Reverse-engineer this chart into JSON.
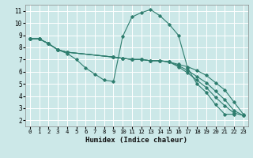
{
  "xlabel": "Humidex (Indice chaleur)",
  "bg_color": "#cce8e8",
  "grid_color": "#ffffff",
  "line_color": "#2e7d6e",
  "xlim": [
    -0.5,
    23.5
  ],
  "ylim": [
    1.5,
    11.5
  ],
  "xticks": [
    0,
    1,
    2,
    3,
    4,
    5,
    6,
    7,
    8,
    9,
    10,
    11,
    12,
    13,
    14,
    15,
    16,
    17,
    18,
    19,
    20,
    21,
    22,
    23
  ],
  "yticks": [
    2,
    3,
    4,
    5,
    6,
    7,
    8,
    9,
    10,
    11
  ],
  "lines": [
    {
      "x": [
        0,
        1,
        2,
        3,
        4,
        5,
        6,
        7,
        8,
        9,
        10,
        11,
        12,
        13,
        14,
        15,
        16,
        17,
        18,
        19,
        20,
        21,
        22
      ],
      "y": [
        8.7,
        8.7,
        8.3,
        7.8,
        7.5,
        7.0,
        6.3,
        5.8,
        5.3,
        5.2,
        8.9,
        10.5,
        10.85,
        11.1,
        10.6,
        9.9,
        9.0,
        6.3,
        5.0,
        4.3,
        3.3,
        2.5,
        2.5
      ]
    },
    {
      "x": [
        0,
        1,
        2,
        3,
        4,
        9,
        10,
        11,
        12,
        13,
        14,
        15,
        16,
        17,
        18,
        19,
        20,
        21,
        22,
        23
      ],
      "y": [
        8.7,
        8.7,
        8.3,
        7.8,
        7.6,
        7.2,
        7.1,
        7.0,
        7.0,
        6.9,
        6.9,
        6.8,
        6.6,
        6.4,
        6.1,
        5.7,
        5.1,
        4.5,
        3.5,
        2.5
      ]
    },
    {
      "x": [
        0,
        1,
        2,
        3,
        4,
        9,
        10,
        11,
        12,
        13,
        14,
        15,
        16,
        17,
        18,
        19,
        20,
        21,
        22,
        23
      ],
      "y": [
        8.7,
        8.7,
        8.3,
        7.8,
        7.6,
        7.2,
        7.1,
        7.0,
        7.0,
        6.9,
        6.9,
        6.8,
        6.5,
        6.1,
        5.6,
        5.1,
        4.4,
        3.7,
        2.8,
        2.4
      ]
    },
    {
      "x": [
        0,
        1,
        2,
        3,
        4,
        9,
        10,
        11,
        12,
        13,
        14,
        15,
        16,
        17,
        18,
        19,
        20,
        21,
        22,
        23
      ],
      "y": [
        8.7,
        8.7,
        8.3,
        7.8,
        7.6,
        7.2,
        7.1,
        7.0,
        7.0,
        6.9,
        6.9,
        6.8,
        6.4,
        5.9,
        5.3,
        4.7,
        3.9,
        3.2,
        2.6,
        2.4
      ]
    }
  ]
}
